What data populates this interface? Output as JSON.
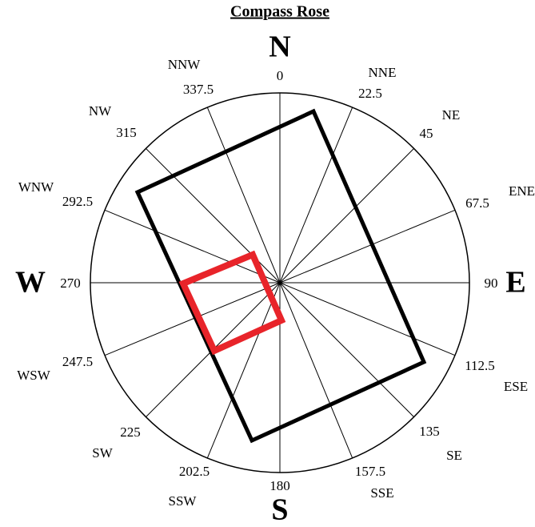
{
  "title": "Compass Rose",
  "directions": [
    {
      "name": "N",
      "degrees": "0"
    },
    {
      "name": "NNE",
      "degrees": "22.5"
    },
    {
      "name": "NE",
      "degrees": "45"
    },
    {
      "name": "ENE",
      "degrees": "67.5"
    },
    {
      "name": "E",
      "degrees": "90"
    },
    {
      "name": "ESE",
      "degrees": "112.5"
    },
    {
      "name": "SE",
      "degrees": "135"
    },
    {
      "name": "SSE",
      "degrees": "157.5"
    },
    {
      "name": "S",
      "degrees": "180"
    },
    {
      "name": "SSW",
      "degrees": "202.5"
    },
    {
      "name": "SW",
      "degrees": "225"
    },
    {
      "name": "WSW",
      "degrees": "247.5"
    },
    {
      "name": "W",
      "degrees": "270"
    },
    {
      "name": "WNW",
      "degrees": "292.5"
    },
    {
      "name": "NW",
      "degrees": "315"
    },
    {
      "name": "NNW",
      "degrees": "337.5"
    }
  ]
}
